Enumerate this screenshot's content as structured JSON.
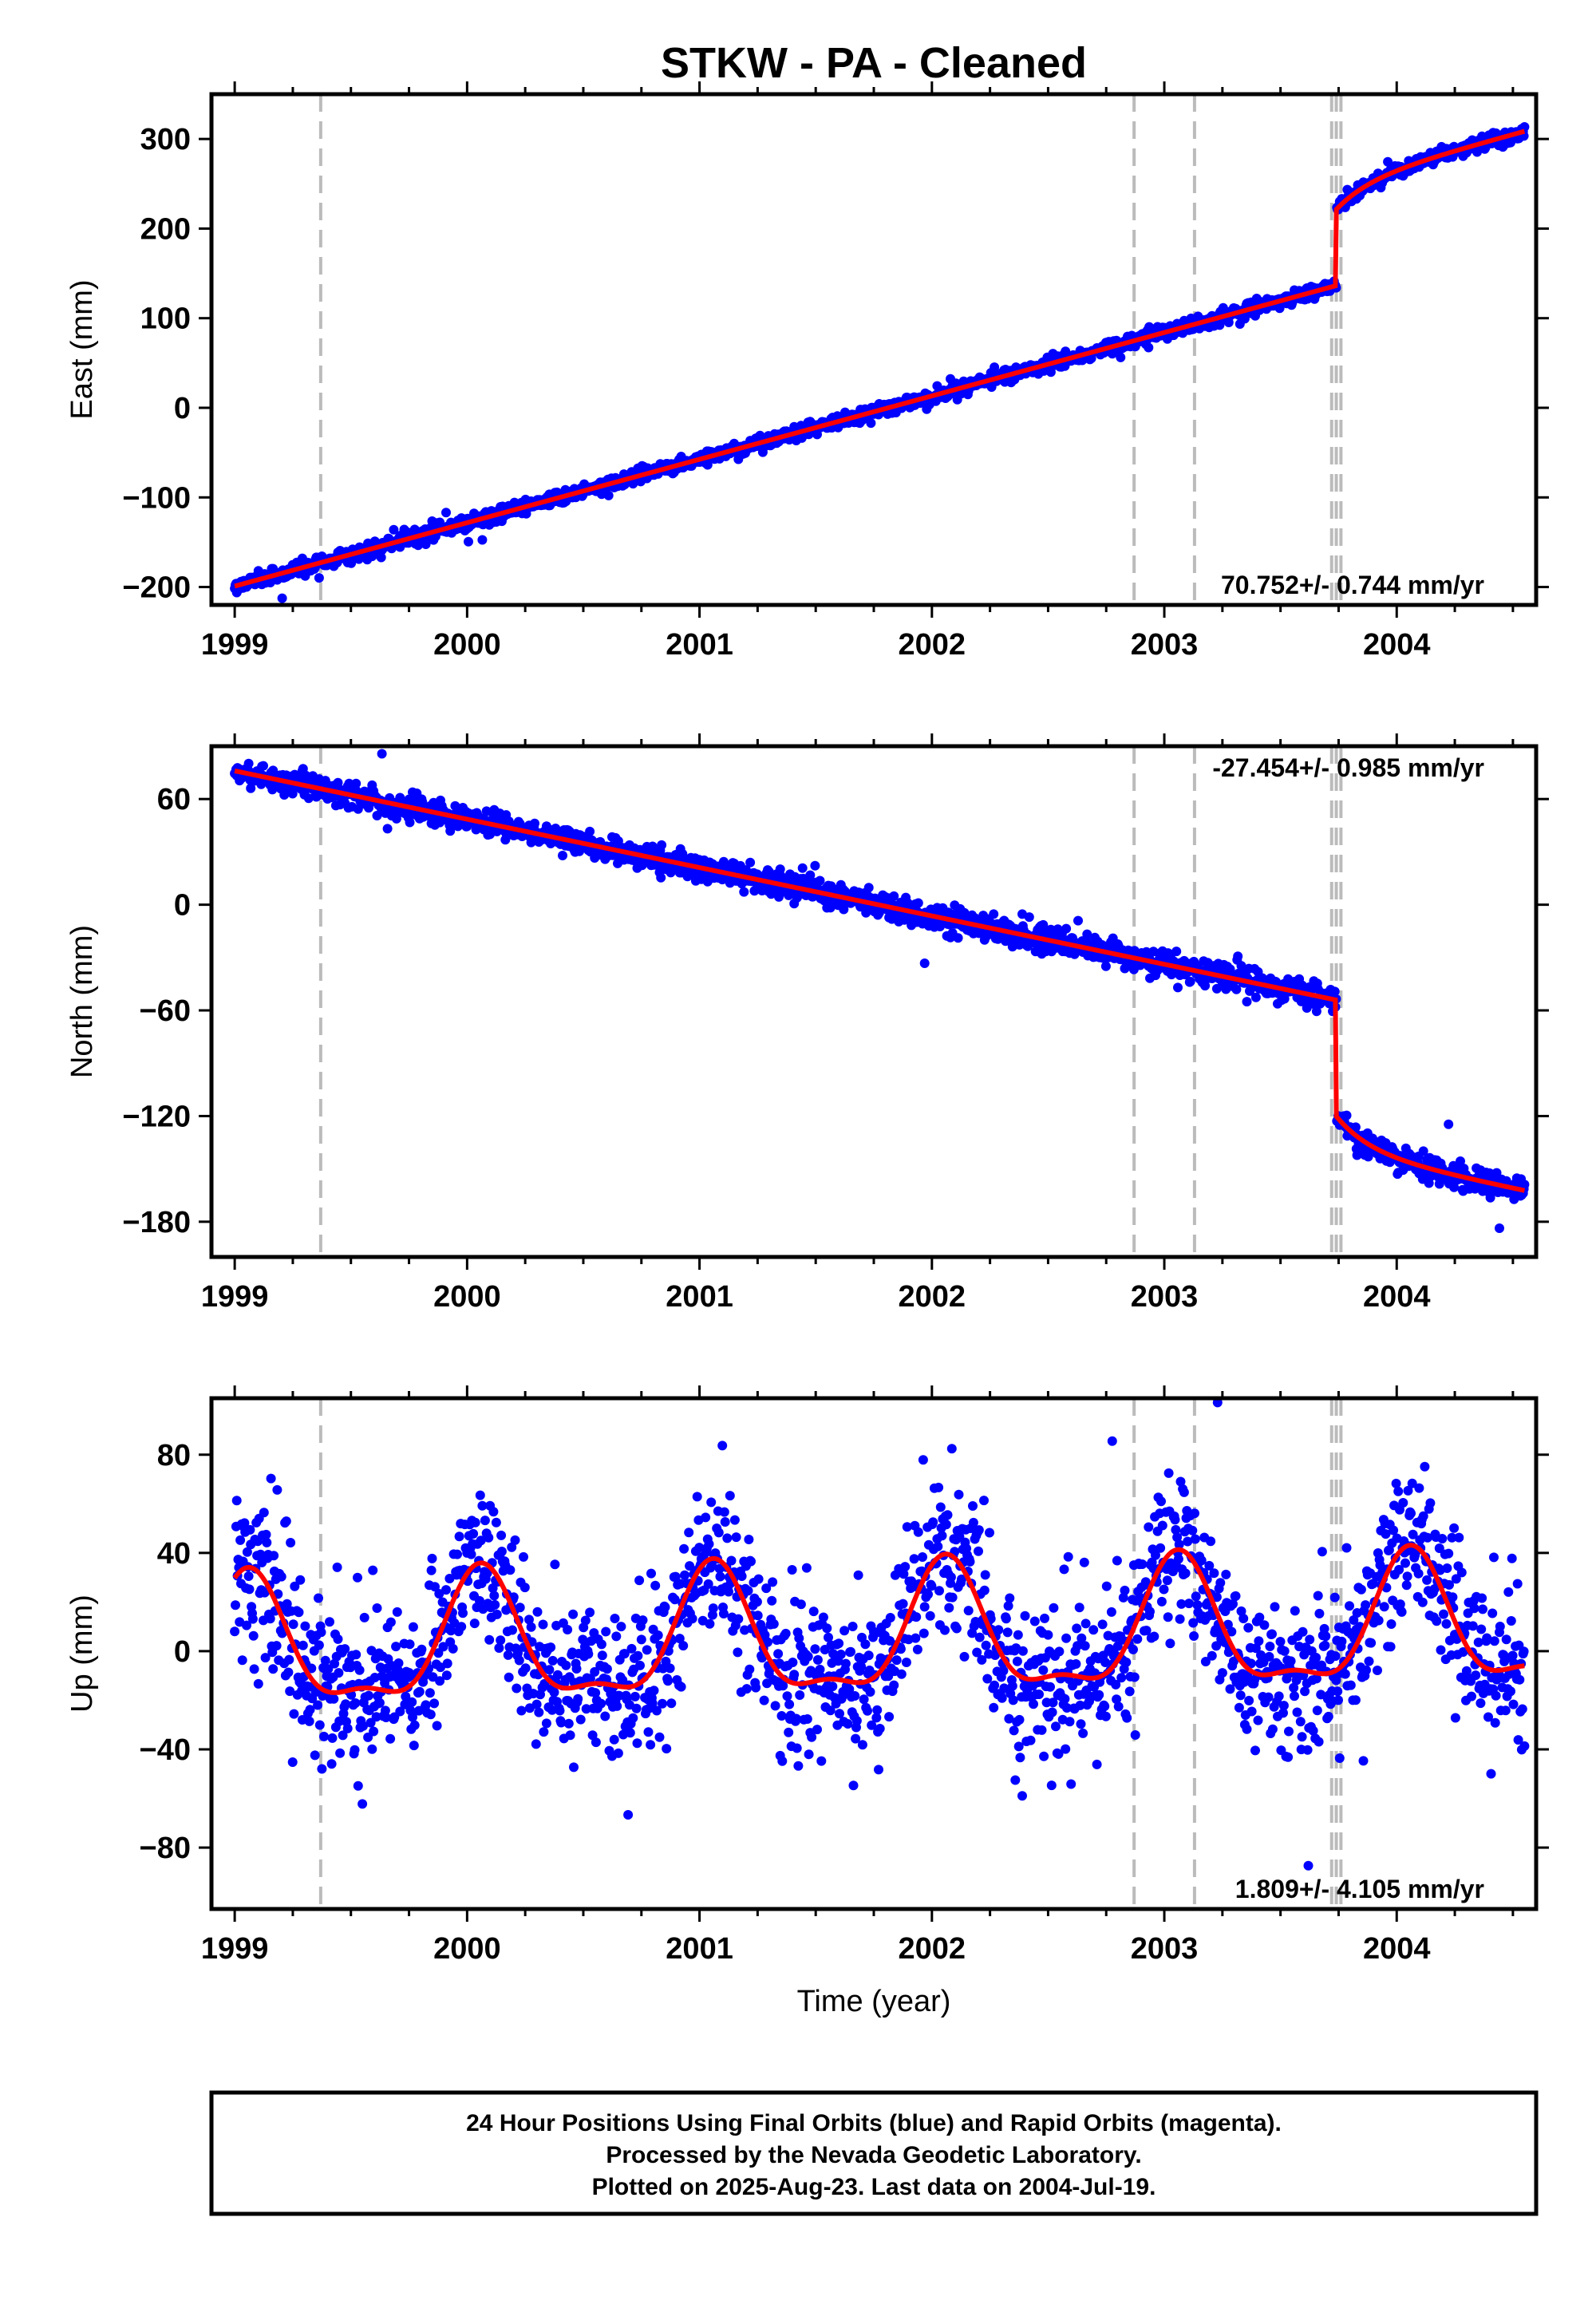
{
  "title": "STKW  - PA - Cleaned",
  "footer": {
    "lines": [
      "24 Hour Positions Using Final Orbits (blue) and Rapid Orbits (magenta).",
      "Processed by the Nevada Geodetic Laboratory.",
      "Plotted on 2025-Aug-23. Last data on 2004-Jul-19."
    ]
  },
  "colors": {
    "data_points": "#0000ff",
    "model_fit": "#ff0000",
    "event_lines": "#bbbbbb"
  },
  "chart_data": [
    {
      "type": "scatter",
      "component": "east",
      "ylabel": "East (mm)",
      "xlabel": "",
      "xlim": [
        1998.9,
        2004.6
      ],
      "ylim": [
        -220,
        350
      ],
      "yticks": [
        -200,
        -100,
        0,
        100,
        200,
        300
      ],
      "ytick_labels": [
        "−200",
        "−100",
        "0",
        "100",
        "200",
        "300"
      ],
      "xticks": [
        1999,
        2000,
        2001,
        2002,
        2003,
        2004
      ],
      "rate_label": "70.752+/- 0.744 mm/yr",
      "rate_label_position": "bottom-right",
      "event_lines": [
        1999.37,
        2002.87,
        2003.13,
        2003.72,
        2003.74,
        2003.76
      ],
      "model": {
        "x_start": 1999.0,
        "x_end": 2004.55,
        "y0": -199,
        "slope": 70.752,
        "jump_epoch": 2003.74,
        "jump": 85,
        "postseismic_amplitude": 30,
        "postseismic_tau": 0.15,
        "seasonal_amplitude": 0,
        "seasonal_phase": 0
      },
      "scatter": {
        "noise": 4,
        "n_points": 1850
      }
    },
    {
      "type": "scatter",
      "component": "north",
      "ylabel": "North (mm)",
      "xlabel": "",
      "xlim": [
        1998.9,
        2004.6
      ],
      "ylim": [
        -200,
        90
      ],
      "yticks": [
        -180,
        -120,
        -60,
        0,
        60
      ],
      "ytick_labels": [
        "−180",
        "−120",
        "−60",
        "0",
        "60"
      ],
      "xticks": [
        1999,
        2000,
        2001,
        2002,
        2003,
        2004
      ],
      "rate_label": "-27.454+/- 0.985 mm/yr",
      "rate_label_position": "top-right",
      "event_lines": [
        1999.37,
        2002.87,
        2003.13,
        2003.72,
        2003.74,
        2003.76
      ],
      "model": {
        "x_start": 1999.0,
        "x_end": 2004.55,
        "y0": 76,
        "slope": -27.454,
        "jump_epoch": 2003.74,
        "jump": -66,
        "postseismic_amplitude": -20,
        "postseismic_tau": 0.15,
        "seasonal_amplitude": 0,
        "seasonal_phase": 0
      },
      "scatter": {
        "noise": 3.5,
        "n_points": 1850
      }
    },
    {
      "type": "scatter",
      "component": "up",
      "ylabel": "Up (mm)",
      "xlabel": "Time (year)",
      "xlim": [
        1998.9,
        2004.6
      ],
      "ylim": [
        -105,
        103
      ],
      "yticks": [
        -80,
        -40,
        0,
        40,
        80
      ],
      "ytick_labels": [
        "−80",
        "−40",
        "0",
        "40",
        "80"
      ],
      "xticks": [
        1999,
        2000,
        2001,
        2002,
        2003,
        2004
      ],
      "rate_label": "1.809+/- 4.105 mm/yr",
      "rate_label_position": "bottom-right",
      "event_lines": [
        1999.37,
        2002.87,
        2003.13,
        2003.72,
        2003.74,
        2003.76
      ],
      "model": {
        "x_start": 1999.0,
        "x_end": 2004.55,
        "y0": 0,
        "slope": 1.809,
        "jump_epoch": 2003.74,
        "jump": 0,
        "postseismic_amplitude": 0,
        "postseismic_tau": 0.15,
        "seasonal_amplitude": 25,
        "seasonal_phase": 0.06,
        "semiannual_amplitude": 9
      },
      "scatter": {
        "noise": 16,
        "n_points": 1850
      }
    }
  ]
}
